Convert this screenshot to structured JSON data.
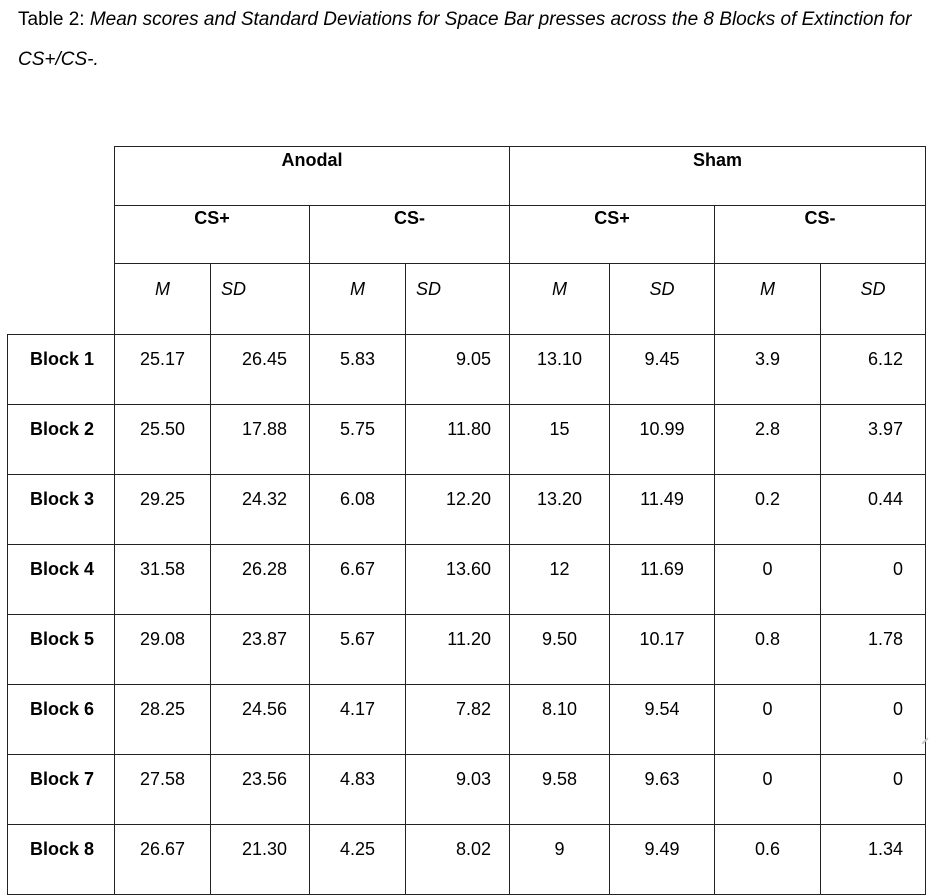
{
  "caption": {
    "label": "Table 2: ",
    "text": "Mean scores and Standard Deviations for Space Bar presses across the 8 Blocks of Extinction for CS+/CS-."
  },
  "table": {
    "groups": [
      "Anodal",
      "Sham"
    ],
    "conditions": [
      "CS+",
      "CS-",
      "CS+",
      "CS-"
    ],
    "stats": [
      "M",
      "SD",
      "M",
      "SD",
      "M",
      "SD",
      "M",
      "SD"
    ],
    "rows": [
      {
        "label": "Block 1",
        "values": [
          "25.17",
          "26.45",
          "5.83",
          "9.05",
          "13.10",
          "9.45",
          "3.9",
          "6.12"
        ]
      },
      {
        "label": "Block 2",
        "values": [
          "25.50",
          "17.88",
          "5.75",
          "11.80",
          "15",
          "10.99",
          "2.8",
          "3.97"
        ]
      },
      {
        "label": "Block 3",
        "values": [
          "29.25",
          "24.32",
          "6.08",
          "12.20",
          "13.20",
          "11.49",
          "0.2",
          "0.44"
        ]
      },
      {
        "label": "Block 4",
        "values": [
          "31.58",
          "26.28",
          "6.67",
          "13.60",
          "12",
          "11.69",
          "0",
          "0"
        ]
      },
      {
        "label": "Block 5",
        "values": [
          "29.08",
          "23.87",
          "5.67",
          "11.20",
          "9.50",
          "10.17",
          "0.8",
          "1.78"
        ]
      },
      {
        "label": "Block 6",
        "values": [
          "28.25",
          "24.56",
          "4.17",
          "7.82",
          "8.10",
          "9.54",
          "0",
          "0"
        ]
      },
      {
        "label": "Block 7",
        "values": [
          "27.58",
          "23.56",
          "4.83",
          "9.03",
          "9.58",
          "9.63",
          "0",
          "0"
        ]
      },
      {
        "label": "Block 8",
        "values": [
          "26.67",
          "21.30",
          "4.25",
          "8.02",
          "9",
          "9.49",
          "0.6",
          "1.34"
        ]
      }
    ]
  }
}
